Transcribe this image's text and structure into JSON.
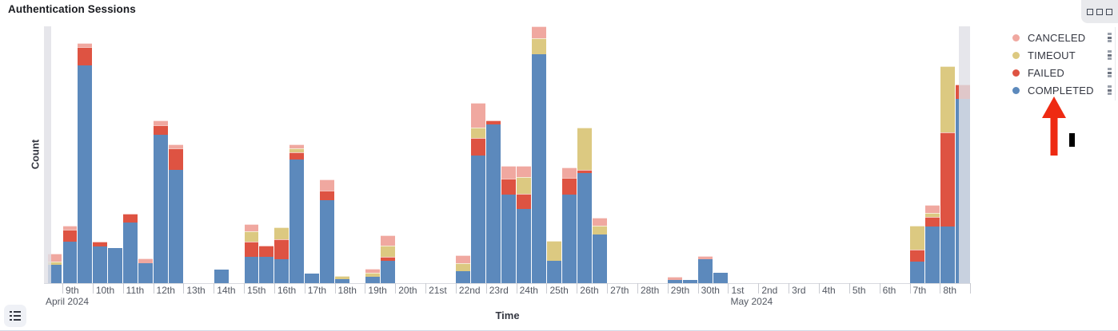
{
  "panel": {
    "title": "Authentication Sessions"
  },
  "legend": {
    "items": [
      {
        "label": "CANCELED",
        "color": "#F0A8A0"
      },
      {
        "label": "TIMEOUT",
        "color": "#DCC981"
      },
      {
        "label": "FAILED",
        "color": "#DE5342"
      },
      {
        "label": "COMPLETED",
        "color": "#5C89BC"
      }
    ],
    "position": "right"
  },
  "axes": {
    "y_label": "Count",
    "x_label": "Time",
    "x_ticks": [
      {
        "label": "9th",
        "sub": "April 2024"
      },
      {
        "label": "10th"
      },
      {
        "label": "11th"
      },
      {
        "label": "12th"
      },
      {
        "label": "13th"
      },
      {
        "label": "14th"
      },
      {
        "label": "15th"
      },
      {
        "label": "16th"
      },
      {
        "label": "17th"
      },
      {
        "label": "18th"
      },
      {
        "label": "19th"
      },
      {
        "label": "20th"
      },
      {
        "label": "21st"
      },
      {
        "label": "22nd"
      },
      {
        "label": "23rd"
      },
      {
        "label": "24th"
      },
      {
        "label": "25th"
      },
      {
        "label": "26th"
      },
      {
        "label": "27th"
      },
      {
        "label": "28th"
      },
      {
        "label": "29th"
      },
      {
        "label": "30th"
      },
      {
        "label": "1st",
        "sub": "May 2024"
      },
      {
        "label": "2nd"
      },
      {
        "label": "3rd"
      },
      {
        "label": "4th"
      },
      {
        "label": "5th"
      },
      {
        "label": "6th"
      },
      {
        "label": "7th"
      },
      {
        "label": "8th"
      }
    ]
  },
  "chart_data": {
    "type": "bar",
    "stacked": true,
    "title": "Authentication Sessions",
    "xlabel": "Time",
    "ylabel": "Count",
    "x_range": "2024-04-08 PM to 2024-05-08 PM",
    "x_interval": "12h (two bars per day tick)",
    "grid": false,
    "legend_position": "right",
    "note": "y-axis shows no numeric tick labels; segment values below are measured bar-segment heights in screen pixels (plot height = 322px)",
    "stack_order_bottom_to_top": [
      "COMPLETED",
      "FAILED",
      "TIMEOUT",
      "CANCELED"
    ],
    "series_colors": {
      "COMPLETED": "#5C89BC",
      "FAILED": "#DE5342",
      "TIMEOUT": "#DCC981",
      "CANCELED": "#F0A8A0"
    },
    "partial_bucket_bands": [
      "left-edge",
      "right-edge"
    ],
    "bars": [
      {
        "label": "Apr 8 PM",
        "pos": -1,
        "COMPLETED": 23,
        "FAILED": 0,
        "TIMEOUT": 4,
        "CANCELED": 10
      },
      {
        "label": "Apr 9 AM",
        "pos": 0,
        "COMPLETED": 52,
        "FAILED": 15,
        "TIMEOUT": 0,
        "CANCELED": 5
      },
      {
        "label": "Apr 9 PM",
        "pos": 1,
        "COMPLETED": 273,
        "FAILED": 23,
        "TIMEOUT": 0,
        "CANCELED": 5
      },
      {
        "label": "Apr 10 AM",
        "pos": 2,
        "COMPLETED": 46,
        "FAILED": 6,
        "TIMEOUT": 0,
        "CANCELED": 0
      },
      {
        "label": "Apr 10 PM",
        "pos": 3,
        "COMPLETED": 44,
        "FAILED": 0,
        "TIMEOUT": 0,
        "CANCELED": 0
      },
      {
        "label": "Apr 11 AM",
        "pos": 4,
        "COMPLETED": 76,
        "FAILED": 11,
        "TIMEOUT": 0,
        "CANCELED": 0
      },
      {
        "label": "Apr 11 PM",
        "pos": 5,
        "COMPLETED": 25,
        "FAILED": 0,
        "TIMEOUT": 0,
        "CANCELED": 6
      },
      {
        "label": "Apr 12 AM",
        "pos": 6,
        "COMPLETED": 186,
        "FAILED": 12,
        "TIMEOUT": 0,
        "CANCELED": 6
      },
      {
        "label": "Apr 12 PM",
        "pos": 7,
        "COMPLETED": 142,
        "FAILED": 27,
        "TIMEOUT": 0,
        "CANCELED": 5
      },
      {
        "label": "Apr 14 AM",
        "pos": 10,
        "COMPLETED": 17,
        "FAILED": 0,
        "TIMEOUT": 0,
        "CANCELED": 0
      },
      {
        "label": "Apr 15 AM",
        "pos": 12,
        "COMPLETED": 33,
        "FAILED": 19,
        "TIMEOUT": 13,
        "CANCELED": 9
      },
      {
        "label": "Apr 15 PM",
        "pos": 13,
        "COMPLETED": 33,
        "FAILED": 14,
        "TIMEOUT": 0,
        "CANCELED": 0
      },
      {
        "label": "Apr 16 AM",
        "pos": 14,
        "COMPLETED": 30,
        "FAILED": 25,
        "TIMEOUT": 15,
        "CANCELED": 0
      },
      {
        "label": "Apr 16 PM",
        "pos": 15,
        "COMPLETED": 155,
        "FAILED": 9,
        "TIMEOUT": 5,
        "CANCELED": 5
      },
      {
        "label": "Apr 17 AM",
        "pos": 16,
        "COMPLETED": 12,
        "FAILED": 0,
        "TIMEOUT": 0,
        "CANCELED": 0
      },
      {
        "label": "Apr 17 PM",
        "pos": 17,
        "COMPLETED": 104,
        "FAILED": 12,
        "TIMEOUT": 0,
        "CANCELED": 14
      },
      {
        "label": "Apr 18 AM",
        "pos": 18,
        "COMPLETED": 5,
        "FAILED": 0,
        "TIMEOUT": 4,
        "CANCELED": 0
      },
      {
        "label": "Apr 19 AM",
        "pos": 20,
        "COMPLETED": 8,
        "FAILED": 0,
        "TIMEOUT": 5,
        "CANCELED": 5
      },
      {
        "label": "Apr 19 PM",
        "pos": 21,
        "COMPLETED": 28,
        "FAILED": 5,
        "TIMEOUT": 14,
        "CANCELED": 13
      },
      {
        "label": "Apr 22 AM",
        "pos": 26,
        "COMPLETED": 15,
        "FAILED": 0,
        "TIMEOUT": 10,
        "CANCELED": 10
      },
      {
        "label": "Apr 22 PM",
        "pos": 27,
        "COMPLETED": 160,
        "FAILED": 22,
        "TIMEOUT": 13,
        "CANCELED": 31
      },
      {
        "label": "Apr 23 AM",
        "pos": 28,
        "COMPLETED": 199,
        "FAILED": 5,
        "TIMEOUT": 0,
        "CANCELED": 0
      },
      {
        "label": "Apr 23 PM",
        "pos": 29,
        "COMPLETED": 111,
        "FAILED": 20,
        "TIMEOUT": 0,
        "CANCELED": 16
      },
      {
        "label": "Apr 24 AM",
        "pos": 30,
        "COMPLETED": 93,
        "FAILED": 19,
        "TIMEOUT": 21,
        "CANCELED": 14
      },
      {
        "label": "Apr 24 PM",
        "pos": 31,
        "COMPLETED": 287,
        "FAILED": 0,
        "TIMEOUT": 20,
        "CANCELED": 15
      },
      {
        "label": "Apr 25 AM",
        "pos": 32,
        "COMPLETED": 28,
        "FAILED": 0,
        "TIMEOUT": 25,
        "CANCELED": 0
      },
      {
        "label": "Apr 25 PM",
        "pos": 33,
        "COMPLETED": 111,
        "FAILED": 21,
        "TIMEOUT": 0,
        "CANCELED": 13
      },
      {
        "label": "Apr 26 AM",
        "pos": 34,
        "COMPLETED": 138,
        "FAILED": 4,
        "TIMEOUT": 53,
        "CANCELED": 0
      },
      {
        "label": "Apr 26 PM",
        "pos": 35,
        "COMPLETED": 61,
        "FAILED": 0,
        "TIMEOUT": 11,
        "CANCELED": 10
      },
      {
        "label": "Apr 29 AM",
        "pos": 40,
        "COMPLETED": 4,
        "FAILED": 0,
        "TIMEOUT": 0,
        "CANCELED": 4
      },
      {
        "label": "Apr 29 PM",
        "pos": 41,
        "COMPLETED": 4,
        "FAILED": 0,
        "TIMEOUT": 0,
        "CANCELED": 0
      },
      {
        "label": "Apr 30 AM",
        "pos": 42,
        "COMPLETED": 30,
        "FAILED": 0,
        "TIMEOUT": 0,
        "CANCELED": 4
      },
      {
        "label": "Apr 30 PM",
        "pos": 43,
        "COMPLETED": 13,
        "FAILED": 0,
        "TIMEOUT": 0,
        "CANCELED": 0
      },
      {
        "label": "May 7 AM",
        "pos": 56,
        "COMPLETED": 27,
        "FAILED": 15,
        "TIMEOUT": 30,
        "CANCELED": 0
      },
      {
        "label": "May 7 PM",
        "pos": 57,
        "COMPLETED": 71,
        "FAILED": 12,
        "TIMEOUT": 5,
        "CANCELED": 10
      },
      {
        "label": "May 8 AM",
        "pos": 58,
        "COMPLETED": 71,
        "FAILED": 118,
        "TIMEOUT": 83,
        "CANCELED": 0
      },
      {
        "label": "May 8 PM",
        "pos": 59,
        "COMPLETED": 231,
        "FAILED": 18,
        "TIMEOUT": 0,
        "CANCELED": 0
      }
    ]
  },
  "annotation": {
    "arrow_color": "#EE2A12",
    "arrow_target": "COMPLETED legend item",
    "cursor_color": "#000000"
  }
}
